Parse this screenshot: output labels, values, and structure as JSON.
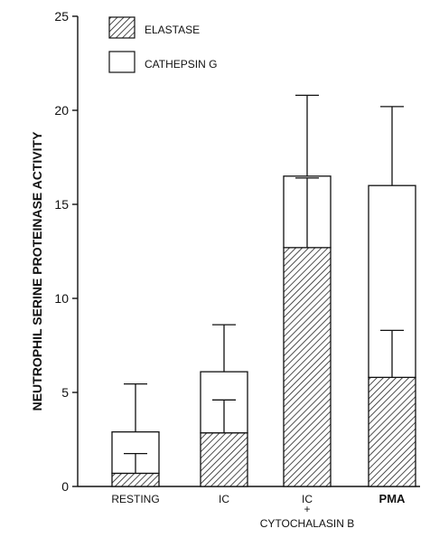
{
  "chart_data": {
    "type": "bar",
    "stacked": true,
    "ylabel": "NEUTROPHIL SERINE PROTEINASE ACTIVITY",
    "ylim": [
      0,
      25
    ],
    "yticks": [
      0,
      5,
      10,
      15,
      20,
      25
    ],
    "categories": [
      {
        "lines": [
          "RESTING"
        ]
      },
      {
        "lines": [
          "IC"
        ]
      },
      {
        "lines": [
          "IC",
          "+",
          "CYTOCHALASIN B"
        ]
      },
      {
        "lines": [
          "PMA"
        ],
        "bold": true
      }
    ],
    "series": [
      {
        "name": "ELASTASE",
        "pattern": "hatched",
        "values": [
          0.7,
          2.85,
          12.7,
          5.8
        ],
        "error_top": [
          1.75,
          4.6,
          16.4,
          8.3
        ]
      },
      {
        "name": "CATHEPSIN G",
        "pattern": "open",
        "values": [
          2.2,
          3.25,
          3.8,
          10.2
        ],
        "error_top": [
          5.45,
          8.6,
          20.8,
          20.2
        ]
      }
    ],
    "totals": [
      2.9,
      6.1,
      16.5,
      16.0
    ],
    "legend_placement": "top-left",
    "grid": false
  }
}
